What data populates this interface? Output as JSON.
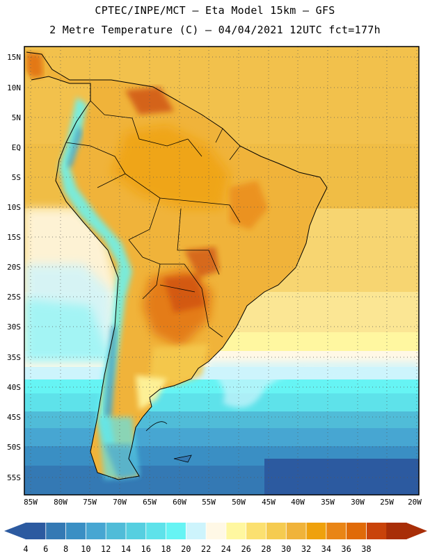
{
  "header": {
    "title_line1": "CPTEC/INPE/MCT —  Eta Model 15km — GFS",
    "title_line2": "2 Metre Temperature (C) — 04/04/2021 12UTC fct=177h"
  },
  "axes": {
    "lat_labels": [
      "15N",
      "10N",
      "5N",
      "EQ",
      "5S",
      "10S",
      "15S",
      "20S",
      "25S",
      "30S",
      "35S",
      "40S",
      "45S",
      "50S",
      "55S"
    ],
    "lon_labels": [
      "85W",
      "80W",
      "75W",
      "70W",
      "65W",
      "60W",
      "55W",
      "50W",
      "45W",
      "40W",
      "35W",
      "30W",
      "25W",
      "20W"
    ]
  },
  "colorbar": {
    "values": [
      "4",
      "6",
      "8",
      "10",
      "12",
      "14",
      "16",
      "18",
      "20",
      "22",
      "24",
      "26",
      "28",
      "30",
      "32",
      "34",
      "36",
      "38"
    ],
    "colors": [
      "#2c5aa0",
      "#3479b4",
      "#3a8fc4",
      "#47a6d2",
      "#50bcd8",
      "#56cfe0",
      "#5ee2ea",
      "#66f4f4",
      "#cdf4fc",
      "#fff8e6",
      "#fff7a0",
      "#fbe070",
      "#f5cb50",
      "#f0b33a",
      "#efa10d",
      "#e98516",
      "#e06a08",
      "#c9430a",
      "#a82e08"
    ]
  },
  "chart_data": {
    "type": "heatmap",
    "title": "2 Metre Temperature (C)",
    "model": "Eta Model 15km — GFS",
    "date": "04/04/2021 12UTC",
    "forecast": "fct=177h",
    "xlim": [
      -86,
      -20
    ],
    "ylim": [
      -58,
      16
    ],
    "units": "C",
    "levels": [
      4,
      6,
      8,
      10,
      12,
      14,
      16,
      18,
      20,
      22,
      24,
      26,
      28,
      30,
      32,
      34,
      36,
      38
    ]
  }
}
